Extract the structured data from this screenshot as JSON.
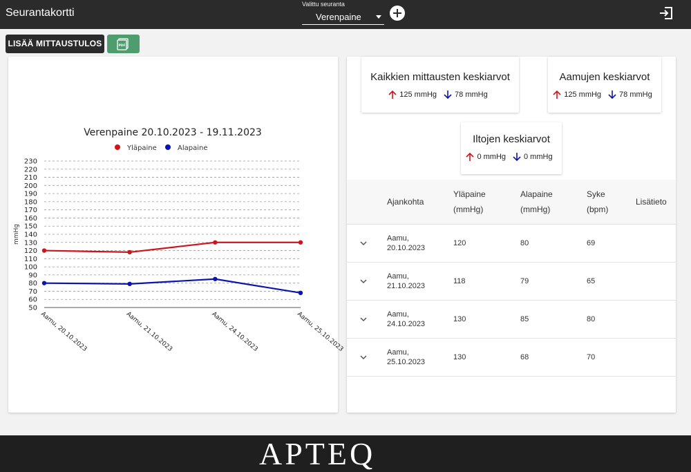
{
  "header": {
    "title": "Seurantakortti",
    "tracker_label": "Valittu seuranta",
    "tracker_value": "Verenpaine"
  },
  "toolbar": {
    "add_result_label": "LISÄÄ MITTAUSTULOS",
    "pdf_icon_text": "PDF"
  },
  "averages": {
    "all": {
      "title": "Kaikkien mittausten keskiarvot",
      "systolic": "125 mmHg",
      "diastolic": "78 mmHg"
    },
    "mornings": {
      "title": "Aamujen keskiarvot",
      "systolic": "125 mmHg",
      "diastolic": "78 mmHg"
    },
    "evenings": {
      "title": "Iltojen keskiarvot",
      "systolic": "0 mmHg",
      "diastolic": "0 mmHg"
    }
  },
  "table": {
    "headers": {
      "time": "Ajankohta",
      "systolic_1": "Yläpaine",
      "systolic_2": "(mmHg)",
      "diastolic_1": "Alapaine",
      "diastolic_2": "(mmHg)",
      "pulse_1": "Syke",
      "pulse_2": "(bpm)",
      "info": "Lisätieto"
    },
    "rows": [
      {
        "time_1": "Aamu,",
        "time_2": "20.10.2023",
        "systolic": "120",
        "diastolic": "80",
        "pulse": "69"
      },
      {
        "time_1": "Aamu,",
        "time_2": "21.10.2023",
        "systolic": "118",
        "diastolic": "79",
        "pulse": "65"
      },
      {
        "time_1": "Aamu,",
        "time_2": "24.10.2023",
        "systolic": "130",
        "diastolic": "85",
        "pulse": "80"
      },
      {
        "time_1": "Aamu,",
        "time_2": "25.10.2023",
        "systolic": "130",
        "diastolic": "68",
        "pulse": "70"
      }
    ]
  },
  "footer": {
    "logo": "APTEQ"
  },
  "colors": {
    "systolic": "#d0141c",
    "diastolic": "#0a14b0",
    "pdf_button": "#4f9c6e",
    "dark": "#2b2b2b"
  },
  "chart_data": {
    "type": "line",
    "title": "Verenpaine 20.10.2023 - 19.11.2023",
    "ylabel": "mmHg",
    "xlabel": "",
    "categories": [
      "Aamu, 20.10.2023",
      "Aamu, 21.10.2023",
      "Aamu, 24.10.2023",
      "Aamu, 25.10.2023"
    ],
    "series": [
      {
        "name": "Yläpaine",
        "color": "#d0141c",
        "values": [
          120,
          118,
          130,
          130
        ]
      },
      {
        "name": "Alapaine",
        "color": "#0a14b0",
        "values": [
          80,
          79,
          85,
          68
        ]
      }
    ],
    "ylim": [
      50,
      230
    ],
    "yticks": [
      50,
      60,
      70,
      80,
      90,
      100,
      110,
      120,
      130,
      140,
      150,
      160,
      170,
      180,
      190,
      200,
      210,
      220,
      230
    ],
    "grid": true,
    "legend": "top"
  }
}
